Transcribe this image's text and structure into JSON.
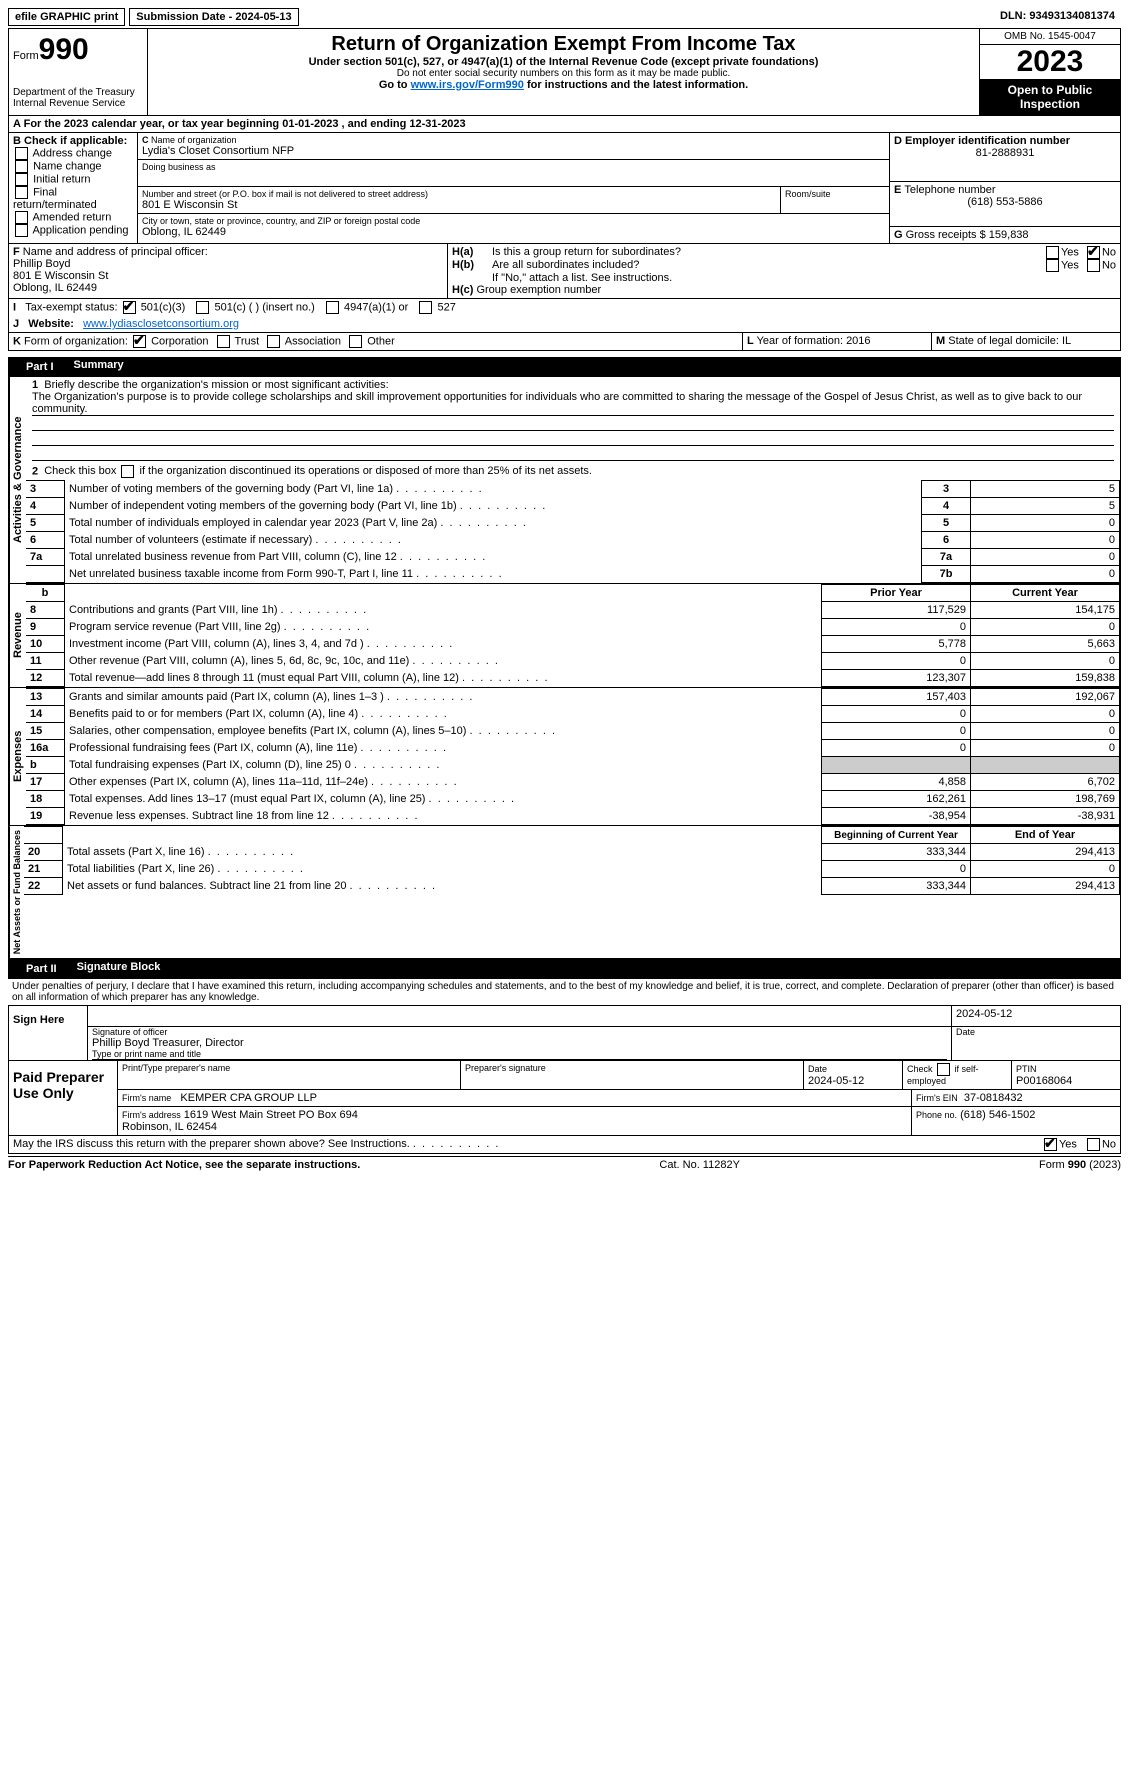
{
  "topbar": {
    "efile": "efile GRAPHIC print",
    "submission": "Submission Date - 2024-05-13",
    "dln": "DLN: 93493134081374"
  },
  "header": {
    "form_label": "Form",
    "form_number": "990",
    "dept": "Department of the Treasury\nInternal Revenue Service",
    "title": "Return of Organization Exempt From Income Tax",
    "subtitle": "Under section 501(c), 527, or 4947(a)(1) of the Internal Revenue Code (except private foundations)",
    "warn": "Do not enter social security numbers on this form as it may be made public.",
    "goto": "Go to ",
    "url": "www.irs.gov/Form990",
    "goto_after": " for instructions and the latest information.",
    "omb": "OMB No. 1545-0047",
    "year": "2023",
    "open": "Open to Public Inspection"
  },
  "periodA": {
    "text_a": "For the 2023 calendar year, or tax year beginning ",
    "begin": "01-01-2023",
    "mid": " , and ending ",
    "end": "12-31-2023"
  },
  "boxB": {
    "label": "Check if applicable:",
    "items": [
      "Address change",
      "Name change",
      "Initial return",
      "Final return/terminated",
      "Amended return",
      "Application pending"
    ]
  },
  "boxC": {
    "name_label": "Name of organization",
    "name": "Lydia's Closet Consortium NFP",
    "dba_label": "Doing business as",
    "addr_label": "Number and street (or P.O. box if mail is not delivered to street address)",
    "addr": "801 E Wisconsin St",
    "room_label": "Room/suite",
    "city_label": "City or town, state or province, country, and ZIP or foreign postal code",
    "city": "Oblong, IL  62449"
  },
  "boxD": {
    "label": "Employer identification number",
    "value": "81-2888931"
  },
  "boxE": {
    "label": "Telephone number",
    "value": "(618) 553-5886"
  },
  "boxG": {
    "label": "Gross receipts $",
    "value": "159,838"
  },
  "boxF": {
    "label": "Name and address of principal officer:",
    "name": "Phillip Boyd",
    "addr1": "801 E Wisconsin St",
    "addr2": "Oblong, IL  62449"
  },
  "boxH": {
    "a_label": "Is this a group return for subordinates?",
    "a_yes": "Yes",
    "a_no": "No",
    "b_label": "Are all subordinates included?",
    "b_note": "If \"No,\" attach a list. See instructions.",
    "c_label": "Group exemption number"
  },
  "boxI": {
    "label": "Tax-exempt status:",
    "opt1": "501(c)(3)",
    "opt2": "501(c) (  ) (insert no.)",
    "opt3": "4947(a)(1) or",
    "opt4": "527"
  },
  "boxJ": {
    "label": "Website:",
    "value": "www.lydiasclosetconsortium.org"
  },
  "boxK": {
    "label": "Form of organization:",
    "opts": [
      "Corporation",
      "Trust",
      "Association",
      "Other"
    ]
  },
  "boxL": {
    "label": "Year of formation:",
    "value": "2016"
  },
  "boxM": {
    "label": "State of legal domicile:",
    "value": "IL"
  },
  "part1": {
    "header_label": "Part I",
    "header_title": "Summary",
    "l1_label": "Briefly describe the organization's mission or most significant activities:",
    "l1_text": "The Organization's purpose is to provide college scholarships and skill improvement opportunities for individuals who are committed to sharing the message of the Gospel of Jesus Christ, as well as to give back to our community.",
    "l2": "Check this box   if the organization discontinued its operations or disposed of more than 25% of its net assets.",
    "rows_ag": [
      {
        "n": "3",
        "label": "Number of voting members of the governing body (Part VI, line 1a)",
        "box": "3",
        "val": "5"
      },
      {
        "n": "4",
        "label": "Number of independent voting members of the governing body (Part VI, line 1b)",
        "box": "4",
        "val": "5"
      },
      {
        "n": "5",
        "label": "Total number of individuals employed in calendar year 2023 (Part V, line 2a)",
        "box": "5",
        "val": "0"
      },
      {
        "n": "6",
        "label": "Total number of volunteers (estimate if necessary)",
        "box": "6",
        "val": "0"
      },
      {
        "n": "7a",
        "label": "Total unrelated business revenue from Part VIII, column (C), line 12",
        "box": "7a",
        "val": "0"
      },
      {
        "n": "",
        "label": "Net unrelated business taxable income from Form 990-T, Part I, line 11",
        "box": "7b",
        "val": "0"
      }
    ],
    "col_prior": "Prior Year",
    "col_current": "Current Year",
    "rows_rev": [
      {
        "n": "8",
        "label": "Contributions and grants (Part VIII, line 1h)",
        "p": "117,529",
        "c": "154,175"
      },
      {
        "n": "9",
        "label": "Program service revenue (Part VIII, line 2g)",
        "p": "0",
        "c": "0"
      },
      {
        "n": "10",
        "label": "Investment income (Part VIII, column (A), lines 3, 4, and 7d )",
        "p": "5,778",
        "c": "5,663"
      },
      {
        "n": "11",
        "label": "Other revenue (Part VIII, column (A), lines 5, 6d, 8c, 9c, 10c, and 11e)",
        "p": "0",
        "c": "0"
      },
      {
        "n": "12",
        "label": "Total revenue—add lines 8 through 11 (must equal Part VIII, column (A), line 12)",
        "p": "123,307",
        "c": "159,838"
      }
    ],
    "rows_exp": [
      {
        "n": "13",
        "label": "Grants and similar amounts paid (Part IX, column (A), lines 1–3 )",
        "p": "157,403",
        "c": "192,067"
      },
      {
        "n": "14",
        "label": "Benefits paid to or for members (Part IX, column (A), line 4)",
        "p": "0",
        "c": "0"
      },
      {
        "n": "15",
        "label": "Salaries, other compensation, employee benefits (Part IX, column (A), lines 5–10)",
        "p": "0",
        "c": "0"
      },
      {
        "n": "16a",
        "label": "Professional fundraising fees (Part IX, column (A), line 11e)",
        "p": "0",
        "c": "0"
      },
      {
        "n": "b",
        "label": "Total fundraising expenses (Part IX, column (D), line 25) 0",
        "p": "GREY",
        "c": "GREY"
      },
      {
        "n": "17",
        "label": "Other expenses (Part IX, column (A), lines 11a–11d, 11f–24e)",
        "p": "4,858",
        "c": "6,702"
      },
      {
        "n": "18",
        "label": "Total expenses. Add lines 13–17 (must equal Part IX, column (A), line 25)",
        "p": "162,261",
        "c": "198,769"
      },
      {
        "n": "19",
        "label": "Revenue less expenses. Subtract line 18 from line 12",
        "p": "-38,954",
        "c": "-38,931"
      }
    ],
    "col_beg": "Beginning of Current Year",
    "col_end": "End of Year",
    "rows_na": [
      {
        "n": "20",
        "label": "Total assets (Part X, line 16)",
        "p": "333,344",
        "c": "294,413"
      },
      {
        "n": "21",
        "label": "Total liabilities (Part X, line 26)",
        "p": "0",
        "c": "0"
      },
      {
        "n": "22",
        "label": "Net assets or fund balances. Subtract line 21 from line 20",
        "p": "333,344",
        "c": "294,413"
      }
    ],
    "side_ag": "Activities & Governance",
    "side_rev": "Revenue",
    "side_exp": "Expenses",
    "side_na": "Net Assets or Fund Balances"
  },
  "part2": {
    "header_label": "Part II",
    "header_title": "Signature Block",
    "declaration": "Under penalties of perjury, I declare that I have examined this return, including accompanying schedules and statements, and to the best of my knowledge and belief, it is true, correct, and complete. Declaration of preparer (other than officer) is based on all information of which preparer has any knowledge.",
    "sign_here": "Sign Here",
    "sig_officer": "Signature of officer",
    "officer_name": "Phillip Boyd  Treasurer, Director",
    "type_name": "Type or print name and title",
    "date1": "2024-05-12",
    "date_label": "Date",
    "paid": "Paid Preparer Use Only",
    "prep_name_label": "Print/Type preparer's name",
    "prep_sig_label": "Preparer's signature",
    "date2": "2024-05-12",
    "check_self": "Check   if self-employed",
    "ptin_label": "PTIN",
    "ptin": "P00168064",
    "firm_name_label": "Firm's name",
    "firm_name": "KEMPER CPA GROUP LLP",
    "firm_ein_label": "Firm's EIN",
    "firm_ein": "37-0818432",
    "firm_addr_label": "Firm's address",
    "firm_addr": "1619 West Main Street PO Box 694\nRobinson, IL  62454",
    "phone_label": "Phone no.",
    "phone": "(618) 546-1502",
    "may_irs": "May the IRS discuss this return with the preparer shown above? See Instructions.",
    "yes": "Yes",
    "no": "No"
  },
  "footer": {
    "left": "For Paperwork Reduction Act Notice, see the separate instructions.",
    "mid": "Cat. No. 11282Y",
    "right": "Form 990 (2023)"
  }
}
